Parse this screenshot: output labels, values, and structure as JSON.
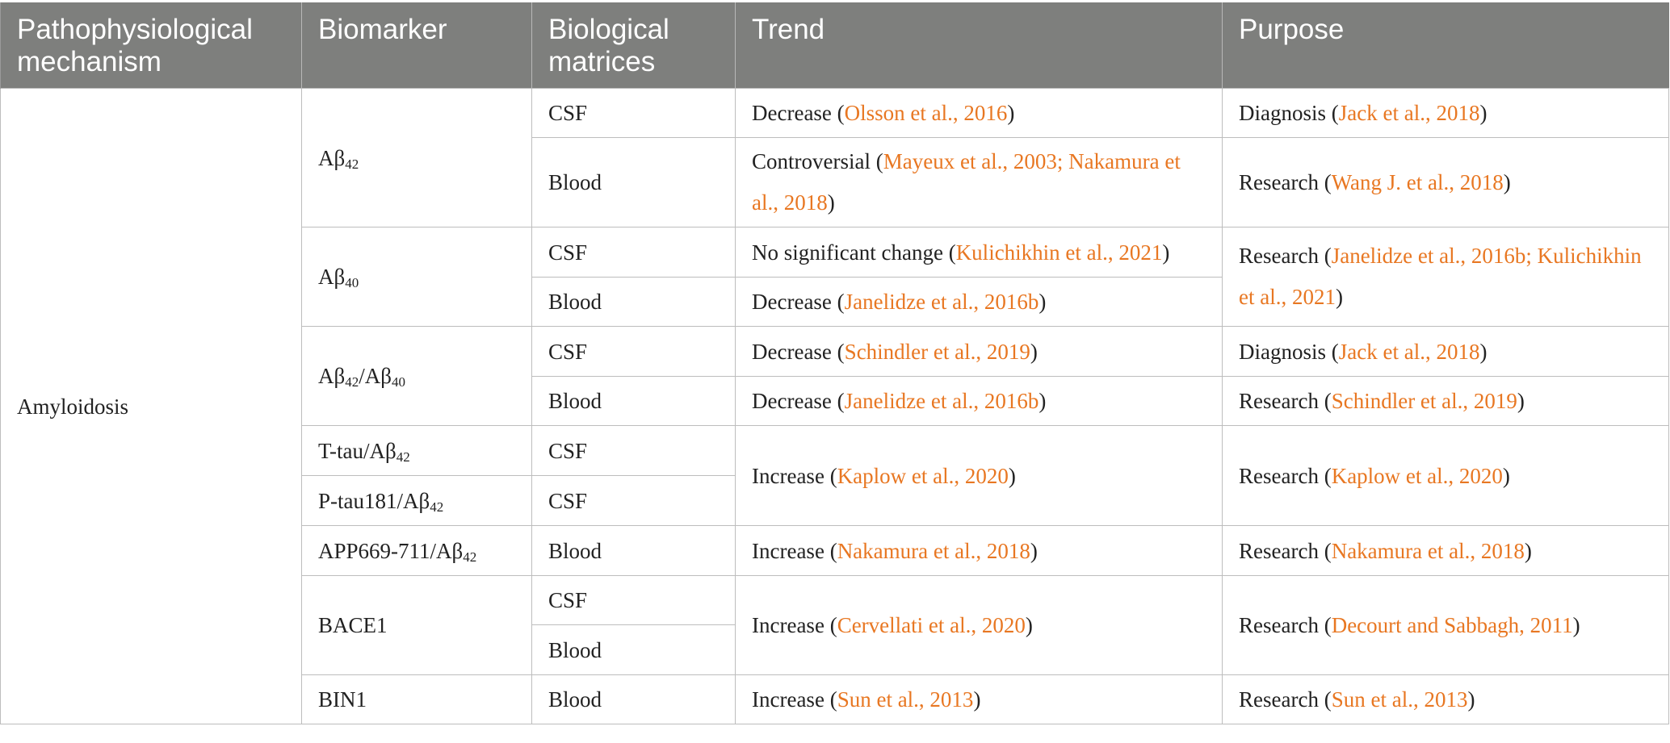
{
  "header": {
    "mechanism": "Pathophysiological mechanism",
    "biomarker": "Biomarker",
    "matrices": "Biological matrices",
    "trend": "Trend",
    "purpose": "Purpose"
  },
  "mechanism": "Amyloidosis",
  "colors": {
    "header_bg": "#7e7f7d",
    "header_text": "#ffffff",
    "reference": "#e87722",
    "border": "#bdbdbd"
  },
  "biomarkers": {
    "ab42": {
      "base": "Aβ",
      "sub": "42"
    },
    "ab40": {
      "base": "Aβ",
      "sub": "40"
    },
    "ratio": {
      "base1": "Aβ",
      "sub1": "42",
      "sep": "/Aβ",
      "sub2": "40"
    },
    "ttau": {
      "base": "T-tau/Aβ",
      "sub": "42"
    },
    "ptau": {
      "base": "P-tau181/Aβ",
      "sub": "42"
    },
    "app": {
      "base": "APP669-711/Aβ",
      "sub": "42"
    },
    "bace1": "BACE1",
    "bin1": "BIN1"
  },
  "matrix": {
    "csf": "CSF",
    "blood": "Blood"
  },
  "trend": {
    "r1": {
      "word": "Decrease",
      "ref": "Olsson et al., 2016"
    },
    "r2": {
      "word": "Controversial",
      "ref": "Mayeux et al., 2003; Nakamura et al., 2018"
    },
    "r3": {
      "word": "No significant change",
      "ref": "Kulichikhin et al., 2021"
    },
    "r4": {
      "word": "Decrease",
      "ref": "Janelidze et al., 2016b"
    },
    "r5": {
      "word": "Decrease",
      "ref": "Schindler et al., 2019"
    },
    "r6": {
      "word": "Decrease",
      "ref": "Janelidze et al., 2016b"
    },
    "r7": {
      "word": "Increase",
      "ref": "Kaplow et al., 2020"
    },
    "r9": {
      "word": "Increase",
      "ref": "Nakamura et al., 2018"
    },
    "r10": {
      "word": "Increase",
      "ref": "Cervellati et al., 2020"
    },
    "r12": {
      "word": "Increase",
      "ref": "Sun et al., 2013"
    }
  },
  "purpose": {
    "r1": {
      "word": "Diagnosis",
      "ref": "Jack et al., 2018"
    },
    "r2": {
      "word": "Research",
      "ref": "Wang J. et al., 2018"
    },
    "r3": {
      "word": "Research",
      "ref": "Janelidze et al., 2016b; Kulichikhin et al., 2021"
    },
    "r5": {
      "word": "Diagnosis",
      "ref": "Jack et al., 2018"
    },
    "r6": {
      "word": "Research",
      "ref": "Schindler et al., 2019"
    },
    "r7": {
      "word": "Research",
      "ref": "Kaplow et al., 2020"
    },
    "r9": {
      "word": "Research",
      "ref": "Nakamura et al., 2018"
    },
    "r10": {
      "word": "Research",
      "ref": "Decourt and Sabbagh, 2011"
    },
    "r12": {
      "word": "Research",
      "ref": "Sun et al., 2013"
    }
  }
}
